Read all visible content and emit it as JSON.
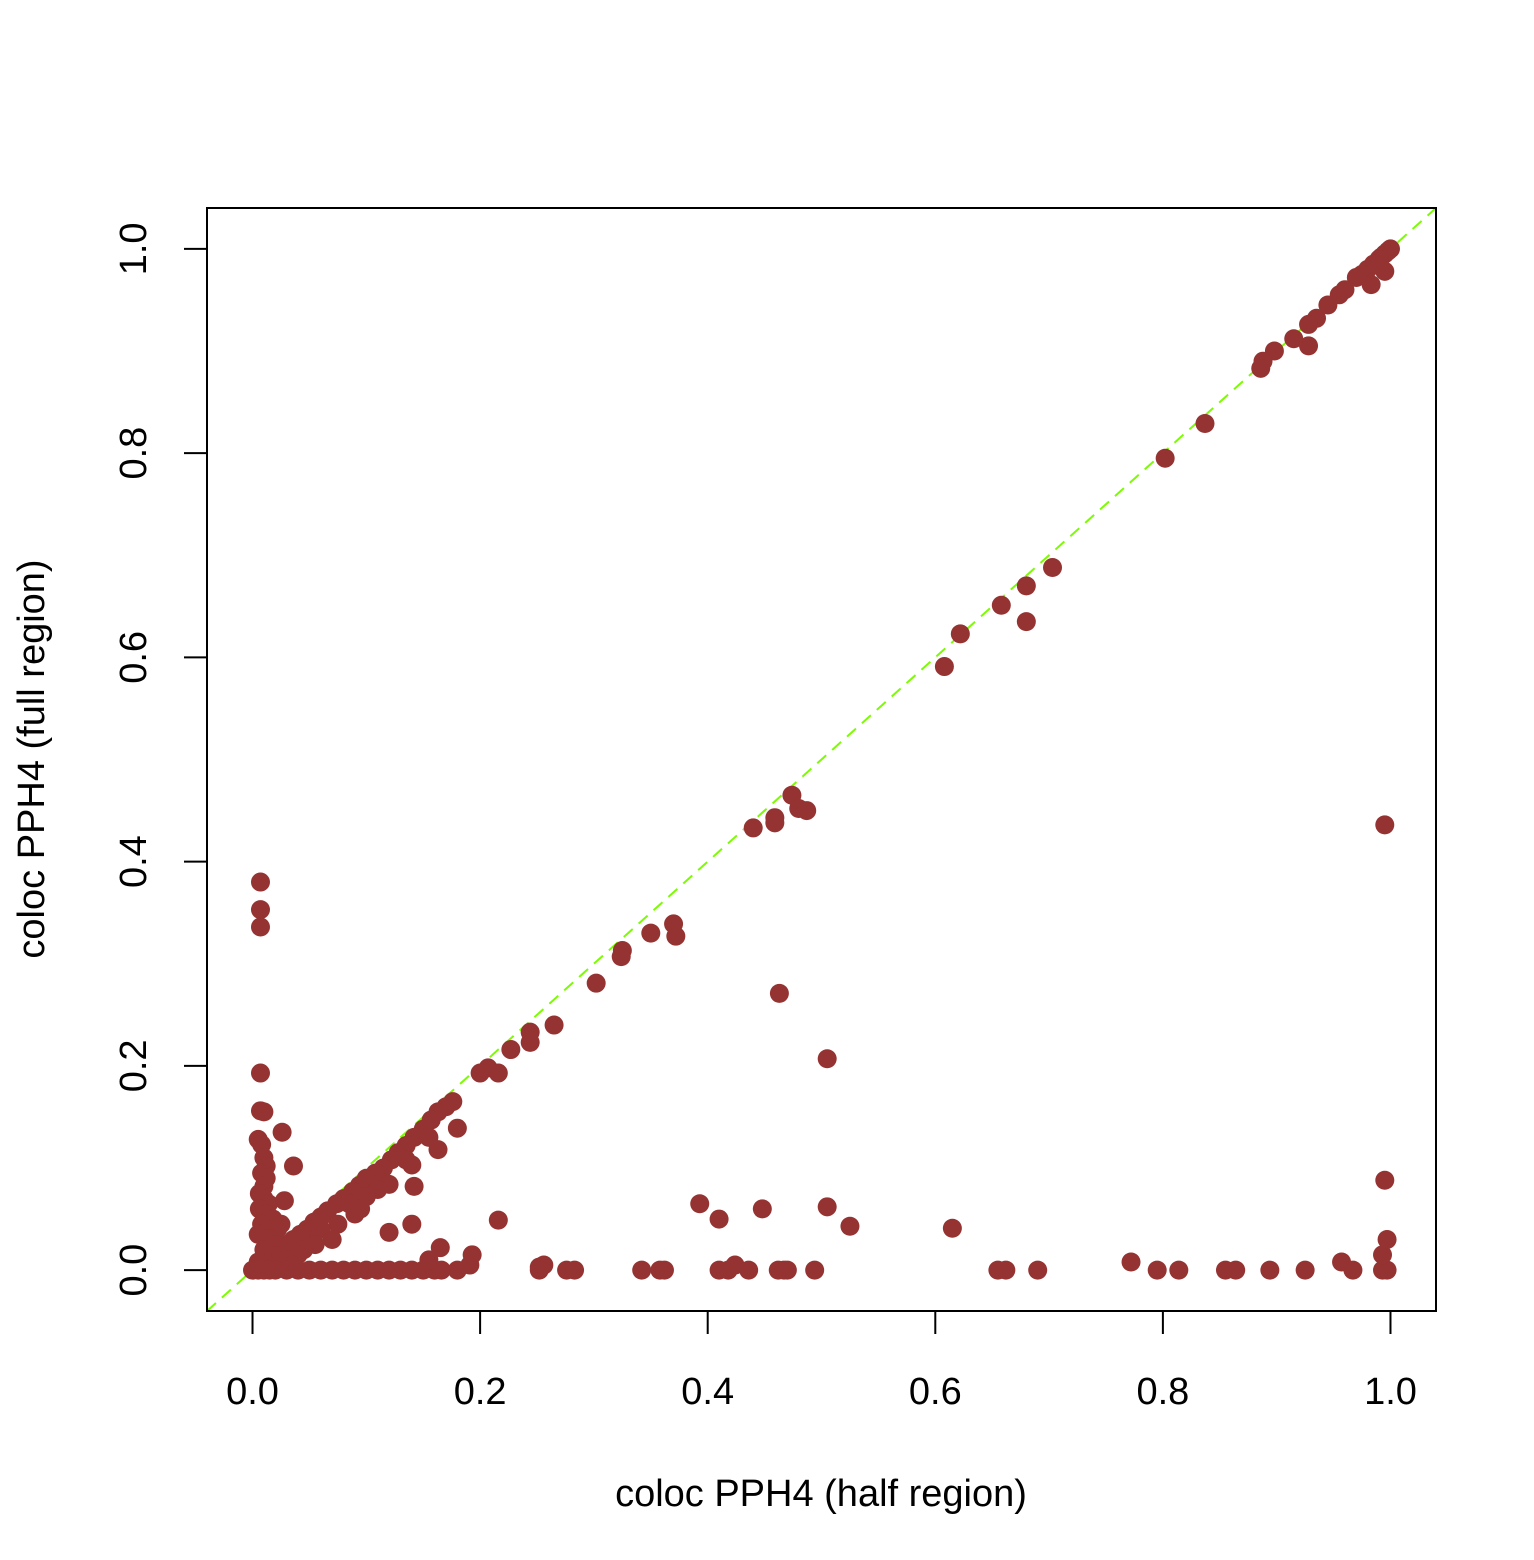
{
  "chart_data": {
    "type": "scatter",
    "title": "",
    "xlabel": "coloc PPH4 (half region)",
    "ylabel": "coloc PPH4 (full region)",
    "xlim": [
      -0.04,
      1.04
    ],
    "ylim": [
      -0.04,
      1.04
    ],
    "xticks": [
      "0.0",
      "0.2",
      "0.4",
      "0.6",
      "0.8",
      "1.0"
    ],
    "yticks": [
      "0.0",
      "0.2",
      "0.4",
      "0.6",
      "0.8",
      "1.0"
    ],
    "grid": false,
    "legend": false,
    "point_color": "#943331",
    "reference_line": {
      "type": "y=x",
      "style": "dashed",
      "color": "#7CFC00"
    },
    "points": [
      [
        1.0,
        1.0
      ],
      [
        0.998,
        0.998
      ],
      [
        0.995,
        0.995
      ],
      [
        0.992,
        0.992
      ],
      [
        0.99,
        0.99
      ],
      [
        0.985,
        0.985
      ],
      [
        0.98,
        0.98
      ],
      [
        0.975,
        0.975
      ],
      [
        0.97,
        0.972
      ],
      [
        0.995,
        0.978
      ],
      [
        0.983,
        0.965
      ],
      [
        0.96,
        0.96
      ],
      [
        0.955,
        0.955
      ],
      [
        0.945,
        0.945
      ],
      [
        0.935,
        0.932
      ],
      [
        0.928,
        0.926
      ],
      [
        0.928,
        0.905
      ],
      [
        0.915,
        0.912
      ],
      [
        0.898,
        0.9
      ],
      [
        0.888,
        0.89
      ],
      [
        0.886,
        0.883
      ],
      [
        0.837,
        0.829
      ],
      [
        0.802,
        0.795
      ],
      [
        0.703,
        0.688
      ],
      [
        0.68,
        0.67
      ],
      [
        0.68,
        0.635
      ],
      [
        0.658,
        0.651
      ],
      [
        0.622,
        0.623
      ],
      [
        0.608,
        0.591
      ],
      [
        0.474,
        0.465
      ],
      [
        0.48,
        0.452
      ],
      [
        0.487,
        0.45
      ],
      [
        0.459,
        0.443
      ],
      [
        0.459,
        0.438
      ],
      [
        0.44,
        0.433
      ],
      [
        0.995,
        0.436
      ],
      [
        0.37,
        0.339
      ],
      [
        0.372,
        0.327
      ],
      [
        0.35,
        0.33
      ],
      [
        0.325,
        0.313
      ],
      [
        0.324,
        0.307
      ],
      [
        0.302,
        0.281
      ],
      [
        0.463,
        0.271
      ],
      [
        0.265,
        0.24
      ],
      [
        0.244,
        0.233
      ],
      [
        0.244,
        0.223
      ],
      [
        0.227,
        0.216
      ],
      [
        0.505,
        0.207
      ],
      [
        0.207,
        0.198
      ],
      [
        0.2,
        0.193
      ],
      [
        0.216,
        0.193
      ],
      [
        0.18,
        0.139
      ],
      [
        0.176,
        0.165
      ],
      [
        0.17,
        0.16
      ],
      [
        0.163,
        0.155
      ],
      [
        0.157,
        0.147
      ],
      [
        0.15,
        0.138
      ],
      [
        0.142,
        0.13
      ],
      [
        0.135,
        0.122
      ],
      [
        0.128,
        0.115
      ],
      [
        0.122,
        0.108
      ],
      [
        0.115,
        0.1
      ],
      [
        0.108,
        0.095
      ],
      [
        0.1,
        0.09
      ],
      [
        0.094,
        0.083
      ],
      [
        0.088,
        0.077
      ],
      [
        0.08,
        0.07
      ],
      [
        0.074,
        0.065
      ],
      [
        0.066,
        0.058
      ],
      [
        0.06,
        0.052
      ],
      [
        0.054,
        0.047
      ],
      [
        0.048,
        0.04
      ],
      [
        0.042,
        0.035
      ],
      [
        0.036,
        0.03
      ],
      [
        0.03,
        0.025
      ],
      [
        0.024,
        0.02
      ],
      [
        0.018,
        0.015
      ],
      [
        0.012,
        0.01
      ],
      [
        0.006,
        0.005
      ],
      [
        0.163,
        0.118
      ],
      [
        0.155,
        0.13
      ],
      [
        0.14,
        0.103
      ],
      [
        0.135,
        0.108
      ],
      [
        0.12,
        0.084
      ],
      [
        0.142,
        0.082
      ],
      [
        0.11,
        0.079
      ],
      [
        0.1,
        0.072
      ],
      [
        0.095,
        0.06
      ],
      [
        0.09,
        0.055
      ],
      [
        0.085,
        0.065
      ],
      [
        0.075,
        0.045
      ],
      [
        0.07,
        0.03
      ],
      [
        0.06,
        0.04
      ],
      [
        0.055,
        0.025
      ],
      [
        0.045,
        0.02
      ],
      [
        0.04,
        0.015
      ],
      [
        0.12,
        0.037
      ],
      [
        0.14,
        0.045
      ],
      [
        0.036,
        0.102
      ],
      [
        0.026,
        0.135
      ],
      [
        0.028,
        0.068
      ],
      [
        0.025,
        0.045
      ],
      [
        0.007,
        0.38
      ],
      [
        0.007,
        0.353
      ],
      [
        0.007,
        0.336
      ],
      [
        0.007,
        0.193
      ],
      [
        0.007,
        0.156
      ],
      [
        0.01,
        0.155
      ],
      [
        0.005,
        0.128
      ],
      [
        0.008,
        0.123
      ],
      [
        0.01,
        0.11
      ],
      [
        0.012,
        0.102
      ],
      [
        0.008,
        0.095
      ],
      [
        0.012,
        0.09
      ],
      [
        0.01,
        0.082
      ],
      [
        0.006,
        0.075
      ],
      [
        0.01,
        0.07
      ],
      [
        0.014,
        0.065
      ],
      [
        0.006,
        0.06
      ],
      [
        0.012,
        0.055
      ],
      [
        0.018,
        0.05
      ],
      [
        0.008,
        0.045
      ],
      [
        0.022,
        0.04
      ],
      [
        0.005,
        0.035
      ],
      [
        0.015,
        0.03
      ],
      [
        0.02,
        0.025
      ],
      [
        0.01,
        0.02
      ],
      [
        0.025,
        0.015
      ],
      [
        0.03,
        0.01
      ],
      [
        0.005,
        0.008
      ],
      [
        0.035,
        0.005
      ],
      [
        0.0,
        0.0
      ],
      [
        0.005,
        0.0
      ],
      [
        0.01,
        0.0
      ],
      [
        0.015,
        0.0
      ],
      [
        0.02,
        0.0
      ],
      [
        0.03,
        0.0
      ],
      [
        0.04,
        0.0
      ],
      [
        0.05,
        0.0
      ],
      [
        0.06,
        0.0
      ],
      [
        0.07,
        0.0
      ],
      [
        0.08,
        0.0
      ],
      [
        0.09,
        0.0
      ],
      [
        0.1,
        0.0
      ],
      [
        0.11,
        0.0
      ],
      [
        0.12,
        0.0
      ],
      [
        0.13,
        0.0
      ],
      [
        0.14,
        0.0
      ],
      [
        0.15,
        0.0
      ],
      [
        0.16,
        0.0
      ],
      [
        0.166,
        0.0
      ],
      [
        0.18,
        0.0
      ],
      [
        0.191,
        0.005
      ],
      [
        0.193,
        0.015
      ],
      [
        0.165,
        0.022
      ],
      [
        0.155,
        0.01
      ],
      [
        0.216,
        0.049
      ],
      [
        0.252,
        0.0
      ],
      [
        0.252,
        0.003
      ],
      [
        0.256,
        0.005
      ],
      [
        0.276,
        0.0
      ],
      [
        0.283,
        0.0
      ],
      [
        0.342,
        0.0
      ],
      [
        0.358,
        0.0
      ],
      [
        0.362,
        0.0
      ],
      [
        0.393,
        0.065
      ],
      [
        0.41,
        0.05
      ],
      [
        0.41,
        0.0
      ],
      [
        0.418,
        0.0
      ],
      [
        0.424,
        0.005
      ],
      [
        0.436,
        0.0
      ],
      [
        0.448,
        0.06
      ],
      [
        0.462,
        0.0
      ],
      [
        0.467,
        0.0
      ],
      [
        0.47,
        0.0
      ],
      [
        0.494,
        0.0
      ],
      [
        0.505,
        0.062
      ],
      [
        0.525,
        0.043
      ],
      [
        0.615,
        0.041
      ],
      [
        0.655,
        0.0
      ],
      [
        0.662,
        0.0
      ],
      [
        0.69,
        0.0
      ],
      [
        0.772,
        0.008
      ],
      [
        0.795,
        0.0
      ],
      [
        0.814,
        0.0
      ],
      [
        0.855,
        0.0
      ],
      [
        0.864,
        0.0
      ],
      [
        0.894,
        0.0
      ],
      [
        0.925,
        0.0
      ],
      [
        0.957,
        0.008
      ],
      [
        0.967,
        0.0
      ],
      [
        0.993,
        0.0
      ],
      [
        0.997,
        0.0
      ],
      [
        0.993,
        0.015
      ],
      [
        0.997,
        0.03
      ],
      [
        0.995,
        0.088
      ]
    ]
  }
}
